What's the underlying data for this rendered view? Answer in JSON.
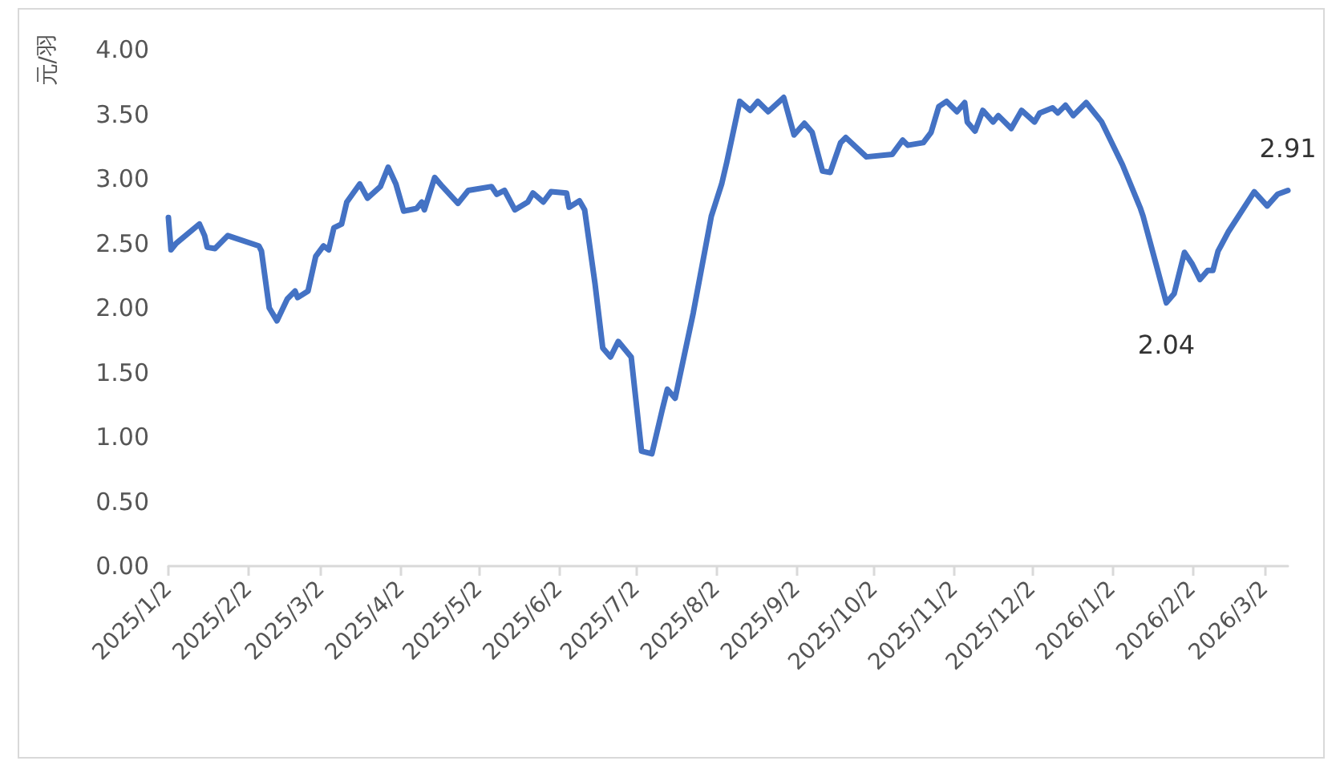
{
  "chart_data": {
    "type": "line",
    "ylabel": "元/羽",
    "x": [
      "2025-01-02",
      "2025-01-03",
      "2025-01-05",
      "2025-01-14",
      "2025-01-16",
      "2025-01-17",
      "2025-01-20",
      "2025-01-25",
      "2025-02-06",
      "2025-02-07",
      "2025-02-10",
      "2025-02-13",
      "2025-02-17",
      "2025-02-20",
      "2025-02-21",
      "2025-02-25",
      "2025-02-28",
      "2025-03-03",
      "2025-03-05",
      "2025-03-07",
      "2025-03-10",
      "2025-03-12",
      "2025-03-17",
      "2025-03-20",
      "2025-03-25",
      "2025-03-28",
      "2025-03-31",
      "2025-04-03",
      "2025-04-08",
      "2025-04-10",
      "2025-04-11",
      "2025-04-15",
      "2025-04-18",
      "2025-04-24",
      "2025-04-28",
      "2025-05-07",
      "2025-05-09",
      "2025-05-12",
      "2025-05-16",
      "2025-05-21",
      "2025-05-23",
      "2025-05-27",
      "2025-05-30",
      "2025-06-05",
      "2025-06-06",
      "2025-06-10",
      "2025-06-12",
      "2025-06-16",
      "2025-06-19",
      "2025-06-22",
      "2025-06-25",
      "2025-06-30",
      "2025-07-04",
      "2025-07-08",
      "2025-07-12",
      "2025-07-14",
      "2025-07-17",
      "2025-07-24",
      "2025-07-31",
      "2025-08-04",
      "2025-08-06",
      "2025-08-11",
      "2025-08-15",
      "2025-08-18",
      "2025-08-22",
      "2025-08-28",
      "2025-09-01",
      "2025-09-05",
      "2025-09-08",
      "2025-09-12",
      "2025-09-15",
      "2025-09-19",
      "2025-09-21",
      "2025-09-29",
      "2025-10-09",
      "2025-10-13",
      "2025-10-15",
      "2025-10-21",
      "2025-10-24",
      "2025-10-27",
      "2025-10-30",
      "2025-11-03",
      "2025-11-06",
      "2025-11-07",
      "2025-11-10",
      "2025-11-13",
      "2025-11-17",
      "2025-11-19",
      "2025-11-24",
      "2025-11-28",
      "2025-12-03",
      "2025-12-05",
      "2025-12-10",
      "2025-12-12",
      "2025-12-15",
      "2025-12-18",
      "2025-12-23",
      "2025-12-29",
      "2026-01-06",
      "2026-01-13",
      "2026-01-14",
      "2026-01-19",
      "2026-01-23",
      "2026-01-26",
      "2026-01-30",
      "2026-02-02",
      "2026-02-05",
      "2026-02-08",
      "2026-02-10",
      "2026-02-12",
      "2026-02-16",
      "2026-02-26",
      "2026-03-03",
      "2026-03-07",
      "2026-03-11"
    ],
    "series": [
      {
        "color": "#4472c4",
        "values": [
          2.7,
          2.45,
          2.5,
          2.65,
          2.56,
          2.47,
          2.46,
          2.56,
          2.48,
          2.44,
          2.0,
          1.9,
          2.07,
          2.13,
          2.08,
          2.13,
          2.4,
          2.48,
          2.45,
          2.62,
          2.65,
          2.82,
          2.96,
          2.85,
          2.94,
          3.09,
          2.96,
          2.75,
          2.77,
          2.82,
          2.76,
          3.01,
          2.94,
          2.81,
          2.91,
          2.94,
          2.88,
          2.91,
          2.76,
          2.82,
          2.89,
          2.82,
          2.9,
          2.89,
          2.78,
          2.83,
          2.76,
          2.19,
          1.69,
          1.62,
          1.74,
          1.62,
          0.89,
          0.87,
          1.21,
          1.37,
          1.3,
          1.96,
          2.71,
          2.96,
          3.13,
          3.6,
          3.53,
          3.6,
          3.52,
          3.63,
          3.34,
          3.43,
          3.36,
          3.06,
          3.05,
          3.28,
          3.32,
          3.17,
          3.19,
          3.3,
          3.26,
          3.28,
          3.36,
          3.56,
          3.6,
          3.52,
          3.59,
          3.44,
          3.37,
          3.53,
          3.44,
          3.49,
          3.39,
          3.53,
          3.44,
          3.51,
          3.55,
          3.51,
          3.57,
          3.49,
          3.59,
          3.44,
          3.11,
          2.77,
          2.71,
          2.34,
          2.04,
          2.11,
          2.43,
          2.34,
          2.22,
          2.29,
          2.29,
          2.44,
          2.59,
          2.9,
          2.79,
          2.88,
          2.91
        ],
        "value_labels": [
          null,
          null,
          null,
          null,
          null,
          null,
          null,
          null,
          null,
          null,
          null,
          null,
          null,
          null,
          null,
          null,
          null,
          null,
          null,
          null,
          null,
          null,
          null,
          null,
          null,
          null,
          null,
          null,
          null,
          null,
          null,
          null,
          null,
          null,
          null,
          null,
          null,
          null,
          null,
          null,
          null,
          null,
          null,
          null,
          null,
          null,
          null,
          null,
          null,
          null,
          null,
          null,
          null,
          null,
          null,
          null,
          null,
          null,
          null,
          null,
          null,
          null,
          null,
          null,
          null,
          null,
          null,
          null,
          null,
          null,
          null,
          null,
          null,
          null,
          null,
          null,
          null,
          null,
          null,
          null,
          null,
          null,
          null,
          null,
          null,
          null,
          null,
          null,
          null,
          null,
          null,
          null,
          null,
          null,
          null,
          null,
          null,
          null,
          null,
          null,
          null,
          null,
          "2.04",
          null,
          null,
          null,
          null,
          null,
          null,
          null,
          null,
          null,
          null,
          null,
          "2.91"
        ]
      }
    ],
    "xlim": [
      "2025-01-02",
      "2026-03-11"
    ],
    "xticks": [
      {
        "value": "2025-01-02",
        "label": "2025/1/2"
      },
      {
        "value": "2025-02-02",
        "label": "2025/2/2"
      },
      {
        "value": "2025-03-02",
        "label": "2025/3/2"
      },
      {
        "value": "2025-04-02",
        "label": "2025/4/2"
      },
      {
        "value": "2025-05-02",
        "label": "2025/5/2"
      },
      {
        "value": "2025-06-02",
        "label": "2025/6/2"
      },
      {
        "value": "2025-07-02",
        "label": "2025/7/2"
      },
      {
        "value": "2025-08-02",
        "label": "2025/8/2"
      },
      {
        "value": "2025-09-02",
        "label": "2025/9/2"
      },
      {
        "value": "2025-10-02",
        "label": "2025/10/2"
      },
      {
        "value": "2025-11-02",
        "label": "2025/11/2"
      },
      {
        "value": "2025-12-02",
        "label": "2025/12/2"
      },
      {
        "value": "2026-01-02",
        "label": "2026/1/2"
      },
      {
        "value": "2026-02-02",
        "label": "2026/2/2"
      },
      {
        "value": "2026-03-02",
        "label": "2026/3/2"
      }
    ],
    "ylim": [
      0,
      4
    ],
    "yticks": [
      {
        "value": 0,
        "label": "0.00"
      },
      {
        "value": 0.5,
        "label": "0.50"
      },
      {
        "value": 1,
        "label": "1.00"
      },
      {
        "value": 1.5,
        "label": "1.50"
      },
      {
        "value": 2,
        "label": "2.00"
      },
      {
        "value": 2.5,
        "label": "2.50"
      },
      {
        "value": 3,
        "label": "3.00"
      },
      {
        "value": 3.5,
        "label": "3.50"
      },
      {
        "value": 4,
        "label": "4.00"
      }
    ],
    "grid": false,
    "marker": "none",
    "line_style": "solid"
  }
}
